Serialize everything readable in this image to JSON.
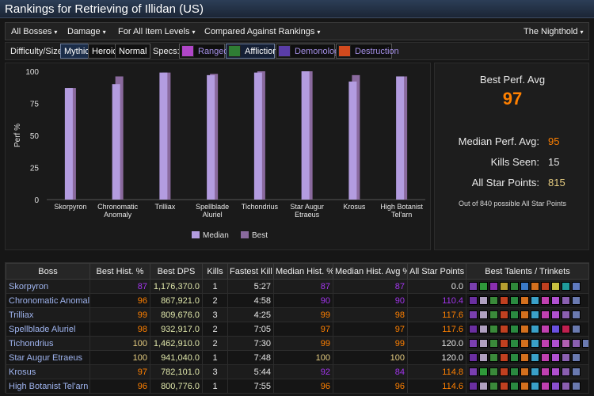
{
  "title": "Rankings for Retrieving of Illidan (US)",
  "filters": {
    "bosses": "All Bosses",
    "metric": "Damage",
    "item_level": "For All Item Levels",
    "compare": "Compared Against Rankings",
    "raid": "The Nighthold",
    "caret": "▾"
  },
  "difficulty": {
    "label": "Difficulty/Size:",
    "options": [
      "Mythic",
      "Heroic",
      "Normal"
    ],
    "selected": "Mythic"
  },
  "specs": {
    "label": "Specs:",
    "items": [
      {
        "name": "Ranged",
        "icon": "ranged-icon",
        "active": false,
        "color": "#b046c8"
      },
      {
        "name": "Affliction",
        "icon": "affliction-icon",
        "active": true,
        "color": "#2f7d34"
      },
      {
        "name": "Demonology",
        "icon": "demonology-icon",
        "active": false,
        "color": "#5a3da8"
      },
      {
        "name": "Destruction",
        "icon": "destruction-icon",
        "active": false,
        "color": "#d24a1e"
      }
    ]
  },
  "chart_data": {
    "type": "bar",
    "ylabel": "Perf %",
    "ylim": [
      0,
      100
    ],
    "yticks": [
      0,
      25,
      50,
      75,
      100
    ],
    "categories": [
      "Skorpyron",
      "Chronomatic Anomaly",
      "Trilliax",
      "Spellblade Aluriel",
      "Tichondrius",
      "Star Augur Etraeus",
      "Krosus",
      "High Botanist Tel'arn"
    ],
    "series": [
      {
        "name": "Median",
        "color": "#b39ce0",
        "values": [
          87,
          90,
          99,
          97,
          99,
          100,
          92,
          96
        ]
      },
      {
        "name": "Best",
        "color": "#8a6a9e",
        "values": [
          87,
          96,
          99,
          98,
          100,
          100,
          97,
          96
        ]
      }
    ],
    "legend": "bottom-center"
  },
  "stats": {
    "best_label": "Best Perf. Avg",
    "best_value": "97",
    "median_label": "Median Perf. Avg:",
    "median_value": "95",
    "kills_label": "Kills Seen:",
    "kills_value": "15",
    "stars_label": "All Star Points:",
    "stars_value": "815",
    "stars_foot": "Out of 840 possible All Star Points"
  },
  "table": {
    "headers": [
      "Boss",
      "Best Hist. %",
      "Best DPS",
      "Kills",
      "Fastest Kill",
      "Median Hist. %",
      "Median Hist. Avg %",
      "All Star Points",
      "Best Talents / Trinkets"
    ],
    "rows": [
      {
        "boss": "Skorpyron",
        "best_pct": "87",
        "best_color": "#a335ee",
        "dps": "1,176,370.0",
        "kills": "1",
        "fastest": "5:27",
        "med_pct": "87",
        "med_color": "#a335ee",
        "med_avg": "87",
        "avg_color": "#a335ee",
        "stars": "0.0",
        "stars_color": "#e6e6e6"
      },
      {
        "boss": "Chronomatic Anomaly",
        "best_pct": "96",
        "best_color": "#ff8000",
        "dps": "867,921.0",
        "kills": "2",
        "fastest": "4:58",
        "med_pct": "90",
        "med_color": "#a335ee",
        "med_avg": "90",
        "avg_color": "#a335ee",
        "stars": "110.4",
        "stars_color": "#a335ee"
      },
      {
        "boss": "Trilliax",
        "best_pct": "99",
        "best_color": "#ff8000",
        "dps": "809,676.0",
        "kills": "3",
        "fastest": "4:25",
        "med_pct": "99",
        "med_color": "#ff8000",
        "med_avg": "98",
        "avg_color": "#ff8000",
        "stars": "117.6",
        "stars_color": "#ff8000"
      },
      {
        "boss": "Spellblade Aluriel",
        "best_pct": "98",
        "best_color": "#ff8000",
        "dps": "932,917.0",
        "kills": "2",
        "fastest": "7:05",
        "med_pct": "97",
        "med_color": "#ff8000",
        "med_avg": "97",
        "avg_color": "#ff8000",
        "stars": "117.6",
        "stars_color": "#ff8000"
      },
      {
        "boss": "Tichondrius",
        "best_pct": "100",
        "best_color": "#e5cc80",
        "dps": "1,462,910.0",
        "kills": "2",
        "fastest": "7:30",
        "med_pct": "99",
        "med_color": "#ff8000",
        "med_avg": "99",
        "avg_color": "#ff8000",
        "stars": "120.0",
        "stars_color": "#e6e6e6"
      },
      {
        "boss": "Star Augur Etraeus",
        "best_pct": "100",
        "best_color": "#e5cc80",
        "dps": "941,040.0",
        "kills": "1",
        "fastest": "7:48",
        "med_pct": "100",
        "med_color": "#e5cc80",
        "med_avg": "100",
        "avg_color": "#e5cc80",
        "stars": "120.0",
        "stars_color": "#e6e6e6"
      },
      {
        "boss": "Krosus",
        "best_pct": "97",
        "best_color": "#ff8000",
        "dps": "782,101.0",
        "kills": "3",
        "fastest": "5:44",
        "med_pct": "92",
        "med_color": "#a335ee",
        "med_avg": "84",
        "avg_color": "#a335ee",
        "stars": "114.8",
        "stars_color": "#ff8000"
      },
      {
        "boss": "High Botanist Tel'arn",
        "best_pct": "96",
        "best_color": "#ff8000",
        "dps": "800,776.0",
        "kills": "1",
        "fastest": "7:55",
        "med_pct": "96",
        "med_color": "#ff8000",
        "med_avg": "96",
        "avg_color": "#ff8000",
        "stars": "114.6",
        "stars_color": "#ff8000"
      }
    ],
    "icon_rows": [
      [
        "#7a3fb0",
        "#2f9a3a",
        "#8a2fb0",
        "#b8a030",
        "#2f8a3a",
        "#3a7ac8",
        "#d4701e",
        "#c04020",
        "#c8c040",
        "#1f9a9a",
        "#5f7ac0"
      ],
      [
        "#6a2fa0",
        "#b0a0c0",
        "#3a8a3a",
        "#c04020",
        "#2a8a40",
        "#d4701e",
        "#3aa0c8",
        "#c040b0",
        "#b050d0",
        "#8a5fb0",
        "#6a7ab0"
      ],
      [
        "#7a3fb0",
        "#b0a0c0",
        "#3a8a3a",
        "#c04020",
        "#2a8a40",
        "#d4701e",
        "#3aa0c8",
        "#c040b0",
        "#b050d0",
        "#8a5fb0",
        "#6a7ab0"
      ],
      [
        "#6a2fa0",
        "#b0a0c0",
        "#3a8a3a",
        "#c04020",
        "#2a8a40",
        "#d4701e",
        "#3aa0c8",
        "#c040b0",
        "#6a50e0",
        "#c02050",
        "#6a7ab0"
      ],
      [
        "#7a3fb0",
        "#b0a0c0",
        "#3a8a3a",
        "#c04020",
        "#2a8a40",
        "#d4701e",
        "#3aa0c8",
        "#c040b0",
        "#b050d0",
        "#b060b0",
        "#8a5fb0",
        "#6a7ab0"
      ],
      [
        "#6a2fa0",
        "#b0a0c0",
        "#3a8a3a",
        "#c04020",
        "#2a8a40",
        "#d4701e",
        "#3aa0c8",
        "#c040b0",
        "#b050d0",
        "#8a5fb0",
        "#6a7ab0"
      ],
      [
        "#7a3fb0",
        "#2f9a3a",
        "#3a8a3a",
        "#c04020",
        "#2a8a40",
        "#d4701e",
        "#3aa0c8",
        "#c040b0",
        "#b050d0",
        "#8a5fb0",
        "#6a7ab0"
      ],
      [
        "#6a2fa0",
        "#b0a0c0",
        "#3a8a3a",
        "#c04020",
        "#2a8a40",
        "#d4701e",
        "#3aa0c8",
        "#c040b0",
        "#8a4fd0",
        "#8a5fb0",
        "#6a7ab0"
      ]
    ]
  }
}
